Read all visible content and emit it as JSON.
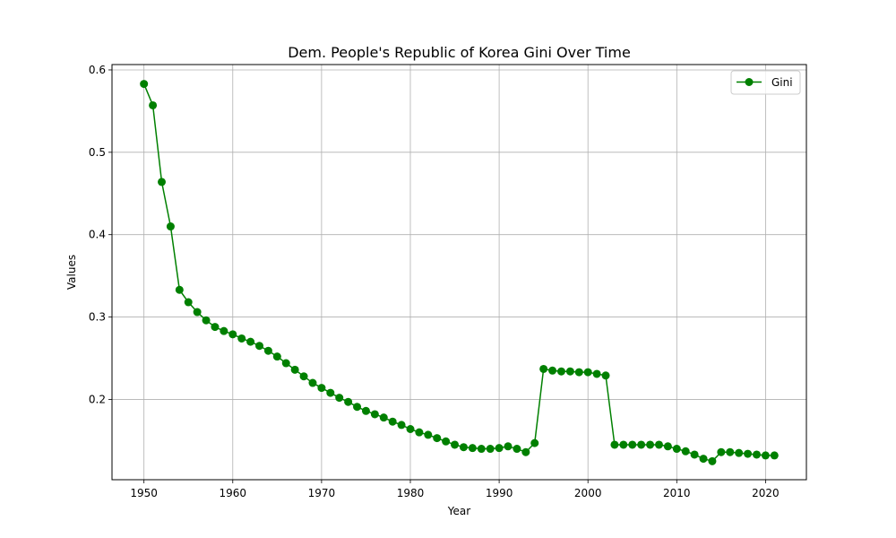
{
  "chart_data": {
    "type": "line",
    "title": "Dem. People's Republic of Korea Gini Over Time",
    "xlabel": "Year",
    "ylabel": "Values",
    "xlim": [
      1946.4,
      2024.6
    ],
    "ylim": [
      0.1025,
      0.6065
    ],
    "xticks": [
      1950,
      1960,
      1970,
      1980,
      1990,
      2000,
      2010,
      2020
    ],
    "yticks": [
      0.2,
      0.3,
      0.4,
      0.5,
      0.6
    ],
    "ytick_labels": [
      "0.2",
      "0.3",
      "0.4",
      "0.5",
      "0.6"
    ],
    "grid": true,
    "legend_position": "top-right",
    "series": [
      {
        "name": "Gini",
        "color": "#008000",
        "marker": "circle",
        "x": [
          1950,
          1951,
          1952,
          1953,
          1954,
          1955,
          1956,
          1957,
          1958,
          1959,
          1960,
          1961,
          1962,
          1963,
          1964,
          1965,
          1966,
          1967,
          1968,
          1969,
          1970,
          1971,
          1972,
          1973,
          1974,
          1975,
          1976,
          1977,
          1978,
          1979,
          1980,
          1981,
          1982,
          1983,
          1984,
          1985,
          1986,
          1987,
          1988,
          1989,
          1990,
          1991,
          1992,
          1993,
          1994,
          1995,
          1996,
          1997,
          1998,
          1999,
          2000,
          2001,
          2002,
          2003,
          2004,
          2005,
          2006,
          2007,
          2008,
          2009,
          2010,
          2011,
          2012,
          2013,
          2014,
          2015,
          2016,
          2017,
          2018,
          2019,
          2020,
          2021
        ],
        "values": [
          0.583,
          0.557,
          0.464,
          0.41,
          0.333,
          0.318,
          0.306,
          0.296,
          0.288,
          0.283,
          0.279,
          0.274,
          0.27,
          0.265,
          0.259,
          0.252,
          0.244,
          0.236,
          0.228,
          0.22,
          0.214,
          0.208,
          0.202,
          0.197,
          0.191,
          0.186,
          0.182,
          0.178,
          0.173,
          0.169,
          0.164,
          0.16,
          0.157,
          0.153,
          0.149,
          0.145,
          0.142,
          0.141,
          0.14,
          0.14,
          0.141,
          0.143,
          0.14,
          0.136,
          0.147,
          0.237,
          0.235,
          0.234,
          0.234,
          0.233,
          0.233,
          0.231,
          0.229,
          0.145,
          0.145,
          0.145,
          0.145,
          0.145,
          0.145,
          0.143,
          0.14,
          0.137,
          0.133,
          0.128,
          0.125,
          0.136,
          0.136,
          0.135,
          0.134,
          0.133,
          0.132,
          0.132
        ]
      }
    ]
  }
}
